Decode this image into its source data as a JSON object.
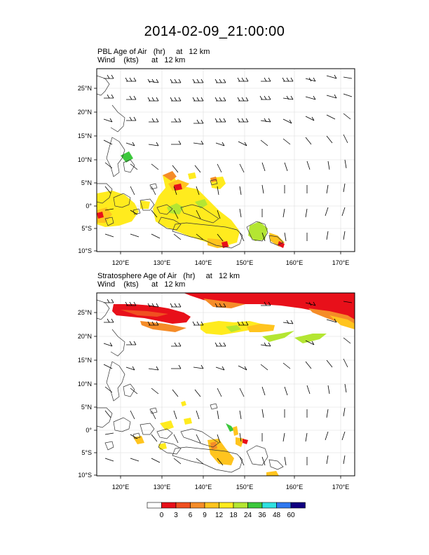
{
  "title": "2014-02-09_21:00:00",
  "panels": [
    {
      "field_line": "PBL Age of Air   (hr)     at   12 km",
      "wind_line": "Wind    (kts)      at   12 km",
      "lat_labels": [
        "25°N",
        "20°N",
        "15°N",
        "10°N",
        "5°N",
        "0°",
        "5°S",
        "10°S"
      ],
      "lon_labels": [
        "120°E",
        "130°E",
        "140°E",
        "150°E",
        "160°E",
        "170°E"
      ]
    },
    {
      "field_line": "Stratosphere Age of Air   (hr)     at   12 km",
      "wind_line": "Wind    (kts)      at   12 km",
      "lat_labels": [
        "25°N",
        "20°N",
        "15°N",
        "10°N",
        "5°N",
        "0°",
        "5°S",
        "10°S"
      ],
      "lon_labels": [
        "120°E",
        "130°E",
        "140°E",
        "150°E",
        "160°E",
        "170°E"
      ]
    }
  ],
  "colorbar": {
    "labels": [
      "0",
      "3",
      "6",
      "9",
      "12",
      "18",
      "24",
      "36",
      "48",
      "60"
    ],
    "colors": [
      "#ffffff",
      "#e8101a",
      "#f05020",
      "#f58c28",
      "#ffc41e",
      "#ffeb1e",
      "#b4e632",
      "#3cc83c",
      "#2ee0e0",
      "#2e78f0",
      "#100080"
    ]
  },
  "palette": {
    "red": "#e8101a",
    "orange": "#f58c28",
    "yellow_orange": "#ffc41e",
    "yellow": "#ffeb1e",
    "light_green": "#b4e632",
    "green": "#3cc83c"
  }
}
